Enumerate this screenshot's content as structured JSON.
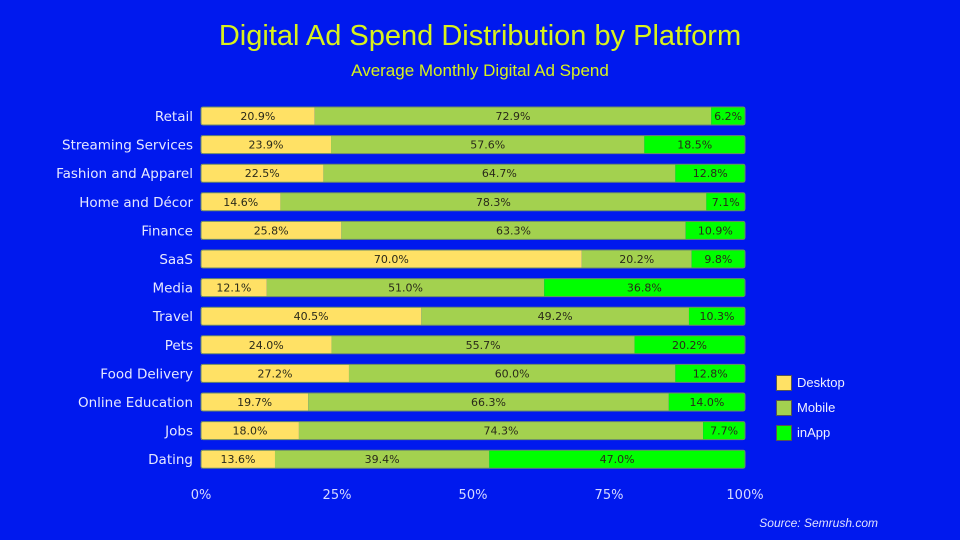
{
  "chart_data": {
    "type": "bar",
    "orientation": "horizontal",
    "stacked": true,
    "title": "Digital Ad Spend Distribution by Platform",
    "subtitle": "Average Monthly Digital Ad Spend",
    "xlabel": "",
    "ylabel": "",
    "xlim": [
      0,
      100
    ],
    "x_ticks": [
      "0%",
      "25%",
      "50%",
      "75%",
      "100%"
    ],
    "x_tick_values": [
      0,
      25,
      50,
      75,
      100
    ],
    "grid": false,
    "legend_position": "bottom-right",
    "categories": [
      "Retail",
      "Streaming Services",
      "Fashion and Apparel",
      "Home and Décor",
      "Finance",
      "SaaS",
      "Media",
      "Travel",
      "Pets",
      "Food Delivery",
      "Online Education",
      "Jobs",
      "Dating"
    ],
    "series": [
      {
        "name": "Desktop",
        "color": "#FFE165",
        "values": [
          20.9,
          23.9,
          22.5,
          14.6,
          25.8,
          70.0,
          12.1,
          40.5,
          24.0,
          27.2,
          19.7,
          18.0,
          13.6
        ],
        "labels": [
          "20.9%",
          "23.9%",
          "22.5%",
          "14.6%",
          "25.8%",
          "70.0%",
          "12.1%",
          "40.5%",
          "24.0%",
          "27.2%",
          "19.7%",
          "18.0%",
          "13.6%"
        ]
      },
      {
        "name": "Mobile",
        "color": "#A3D14F",
        "values": [
          72.9,
          57.6,
          64.7,
          78.3,
          63.3,
          20.2,
          51.0,
          49.2,
          55.7,
          60.0,
          66.3,
          74.3,
          39.4
        ],
        "labels": [
          "72.9%",
          "57.6%",
          "64.7%",
          "78.3%",
          "63.3%",
          "20.2%",
          "51.0%",
          "49.2%",
          "55.7%",
          "60.0%",
          "66.3%",
          "74.3%",
          "39.4%"
        ]
      },
      {
        "name": "inApp",
        "color": "#00FF00",
        "values": [
          6.2,
          18.5,
          12.8,
          7.1,
          10.9,
          9.8,
          36.8,
          10.3,
          20.2,
          12.8,
          14.0,
          7.7,
          47.0
        ],
        "labels": [
          "6.2%",
          "18.5%",
          "12.8%",
          "7.1%",
          "10.9%",
          "9.8%",
          "36.8%",
          "10.3%",
          "20.2%",
          "12.8%",
          "14.0%",
          "7.7%",
          "47.0%"
        ]
      }
    ]
  },
  "source": "Source: Semrush.com"
}
